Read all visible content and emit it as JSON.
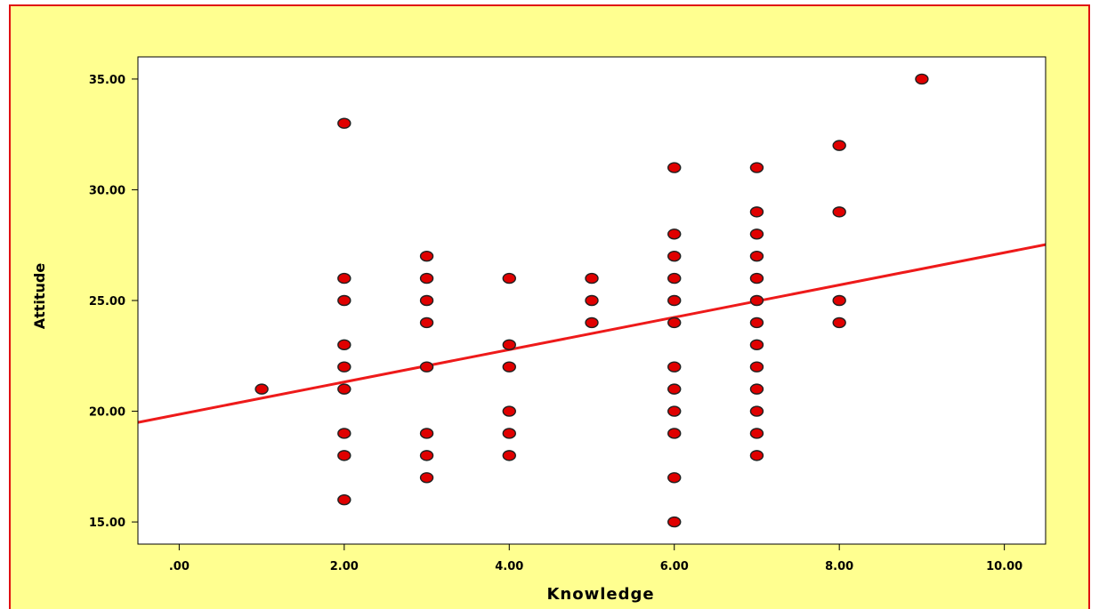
{
  "chart_data": {
    "type": "scatter",
    "xlabel": "Knowledge",
    "ylabel": "Attitude",
    "xlim": [
      -0.5,
      10.5
    ],
    "ylim": [
      14,
      36
    ],
    "x_ticks": [
      0,
      2,
      4,
      6,
      8,
      10
    ],
    "x_tick_labels": [
      ".00",
      "2.00",
      "4.00",
      "6.00",
      "8.00",
      "10.00"
    ],
    "y_ticks": [
      15,
      20,
      25,
      30,
      35
    ],
    "y_tick_labels": [
      "15.00",
      "20.00",
      "25.00",
      "30.00",
      "35.00"
    ],
    "grid": false,
    "points": [
      [
        1,
        21
      ],
      [
        2,
        33
      ],
      [
        2,
        26
      ],
      [
        2,
        25
      ],
      [
        2,
        23
      ],
      [
        2,
        22
      ],
      [
        2,
        21
      ],
      [
        2,
        19
      ],
      [
        2,
        18
      ],
      [
        2,
        16
      ],
      [
        3,
        27
      ],
      [
        3,
        26
      ],
      [
        3,
        25
      ],
      [
        3,
        24
      ],
      [
        3,
        22
      ],
      [
        3,
        19
      ],
      [
        3,
        18
      ],
      [
        3,
        17
      ],
      [
        4,
        26
      ],
      [
        4,
        23
      ],
      [
        4,
        22
      ],
      [
        4,
        20
      ],
      [
        4,
        19
      ],
      [
        4,
        18
      ],
      [
        5,
        26
      ],
      [
        5,
        25
      ],
      [
        5,
        24
      ],
      [
        6,
        31
      ],
      [
        6,
        28
      ],
      [
        6,
        27
      ],
      [
        6,
        26
      ],
      [
        6,
        25
      ],
      [
        6,
        24
      ],
      [
        6,
        22
      ],
      [
        6,
        21
      ],
      [
        6,
        20
      ],
      [
        6,
        19
      ],
      [
        6,
        17
      ],
      [
        6,
        15
      ],
      [
        7,
        31
      ],
      [
        7,
        29
      ],
      [
        7,
        28
      ],
      [
        7,
        27
      ],
      [
        7,
        26
      ],
      [
        7,
        25
      ],
      [
        7,
        24
      ],
      [
        7,
        23
      ],
      [
        7,
        22
      ],
      [
        7,
        21
      ],
      [
        7,
        20
      ],
      [
        7,
        19
      ],
      [
        7,
        18
      ],
      [
        8,
        32
      ],
      [
        8,
        29
      ],
      [
        8,
        25
      ],
      [
        8,
        24
      ],
      [
        9,
        35
      ]
    ],
    "fit_line": {
      "intercept": 19.86,
      "slope": 0.73
    },
    "colors": {
      "outer_background": "#ffff90",
      "plot_background": "#ffffff",
      "point_fill": "#e00000",
      "point_edge": "#202020",
      "fit_line": "#ee1a1a",
      "frame_border": "#e01010"
    }
  }
}
